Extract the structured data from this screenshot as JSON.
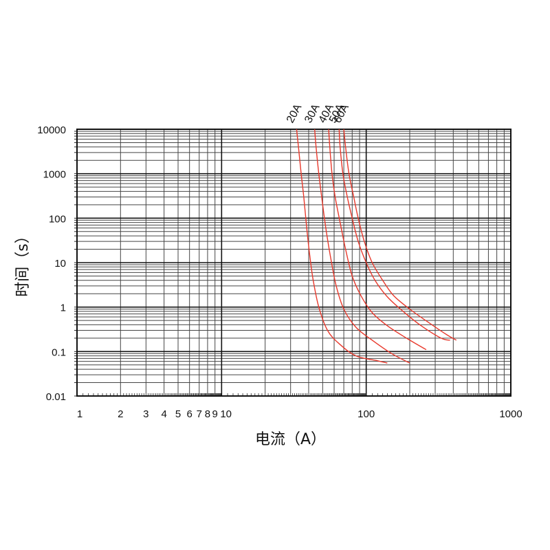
{
  "chart_data": {
    "type": "line",
    "title": "",
    "xlabel": "电流（A）",
    "ylabel": "时间（s）",
    "x_scale": "log",
    "y_scale": "log",
    "xlim": [
      1,
      1000
    ],
    "ylim": [
      0.01,
      10000
    ],
    "grid": true,
    "legend": "labels at top of curves",
    "x_ticks": [
      {
        "value": 1,
        "label": "1"
      },
      {
        "value": 2,
        "label": "2"
      },
      {
        "value": 3,
        "label": "3"
      },
      {
        "value": 4,
        "label": "4"
      },
      {
        "value": 5,
        "label": "5"
      },
      {
        "value": 6,
        "label": "6"
      },
      {
        "value": 7,
        "label": "7"
      },
      {
        "value": 8,
        "label": "8"
      },
      {
        "value": 9,
        "label": "9"
      },
      {
        "value": 10,
        "label": "10"
      },
      {
        "value": 100,
        "label": "100"
      },
      {
        "value": 1000,
        "label": "1000"
      }
    ],
    "y_ticks": [
      {
        "value": 0.01,
        "label": "0.01"
      },
      {
        "value": 0.1,
        "label": "0.1"
      },
      {
        "value": 1,
        "label": "1"
      },
      {
        "value": 10,
        "label": "10"
      },
      {
        "value": 100,
        "label": "100"
      },
      {
        "value": 1000,
        "label": "1000"
      },
      {
        "value": 10000,
        "label": "10000"
      }
    ],
    "series_color": "#e8392c",
    "series": [
      {
        "name": "20A",
        "points": [
          [
            33,
            10000
          ],
          [
            34,
            4000
          ],
          [
            35.5,
            1000
          ],
          [
            37,
            300
          ],
          [
            39,
            50
          ],
          [
            41,
            12
          ],
          [
            43,
            4
          ],
          [
            47,
            1
          ],
          [
            54,
            0.3
          ],
          [
            65,
            0.15
          ],
          [
            85,
            0.08
          ],
          [
            120,
            0.062
          ],
          [
            140,
            0.055
          ]
        ]
      },
      {
        "name": "30A",
        "points": [
          [
            44,
            10000
          ],
          [
            45,
            4000
          ],
          [
            47,
            1000
          ],
          [
            50,
            200
          ],
          [
            53,
            50
          ],
          [
            57,
            12
          ],
          [
            62,
            3
          ],
          [
            70,
            0.9
          ],
          [
            85,
            0.35
          ],
          [
            110,
            0.18
          ],
          [
            150,
            0.09
          ],
          [
            200,
            0.055
          ]
        ]
      },
      {
        "name": "40A",
        "points": [
          [
            55,
            10000
          ],
          [
            56,
            4000
          ],
          [
            58,
            1000
          ],
          [
            61,
            300
          ],
          [
            66,
            80
          ],
          [
            72,
            20
          ],
          [
            80,
            5
          ],
          [
            92,
            1.8
          ],
          [
            110,
            0.75
          ],
          [
            140,
            0.38
          ],
          [
            190,
            0.2
          ],
          [
            260,
            0.11
          ]
        ]
      },
      {
        "name": "50A",
        "points": [
          [
            65,
            10000
          ],
          [
            66,
            4000
          ],
          [
            69,
            1000
          ],
          [
            74,
            300
          ],
          [
            80,
            100
          ],
          [
            88,
            30
          ],
          [
            100,
            10
          ],
          [
            115,
            4
          ],
          [
            140,
            1.7
          ],
          [
            180,
            0.8
          ],
          [
            240,
            0.38
          ],
          [
            330,
            0.2
          ],
          [
            380,
            0.18
          ]
        ]
      },
      {
        "name": "60A",
        "points": [
          [
            70,
            10000
          ],
          [
            72,
            4000
          ],
          [
            76,
            1000
          ],
          [
            82,
            300
          ],
          [
            88,
            100
          ],
          [
            97,
            30
          ],
          [
            110,
            10
          ],
          [
            130,
            4
          ],
          [
            155,
            1.8
          ],
          [
            200,
            0.9
          ],
          [
            270,
            0.45
          ],
          [
            360,
            0.24
          ],
          [
            420,
            0.18
          ]
        ]
      }
    ]
  }
}
